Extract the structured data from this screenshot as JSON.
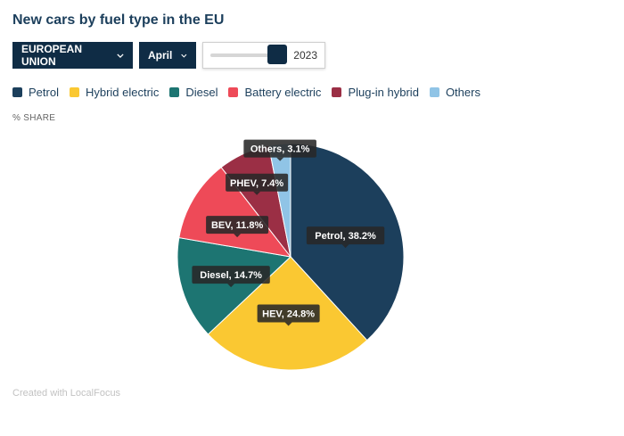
{
  "title": "New cars by fuel type in the EU",
  "controls": {
    "region_label": "EUROPEAN UNION",
    "month_label": "April",
    "year_label": "2023",
    "year_slider_level": 0.9
  },
  "unit_label": "% SHARE",
  "credit": "Created with LocalFocus",
  "chart_data": {
    "type": "pie",
    "title": "New cars by fuel type in the EU",
    "unit": "% SHARE",
    "legend_position": "top",
    "slices": [
      {
        "name": "Petrol",
        "value": 38.2,
        "label": "Petrol, 38.2%",
        "color": "#1c3f5c"
      },
      {
        "name": "Hybrid electric",
        "value": 24.8,
        "label": "HEV, 24.8%",
        "color": "#fac832"
      },
      {
        "name": "Diesel",
        "value": 14.7,
        "label": "Diesel, 14.7%",
        "color": "#1d7572"
      },
      {
        "name": "Battery electric",
        "value": 11.8,
        "label": "BEV, 11.8%",
        "color": "#ee4a58"
      },
      {
        "name": "Plug-in hybrid",
        "value": 7.4,
        "label": "PHEV, 7.4%",
        "color": "#9b2f45"
      },
      {
        "name": "Others",
        "value": 3.1,
        "label": "Others, 3.1%",
        "color": "#90c4e6"
      }
    ]
  }
}
